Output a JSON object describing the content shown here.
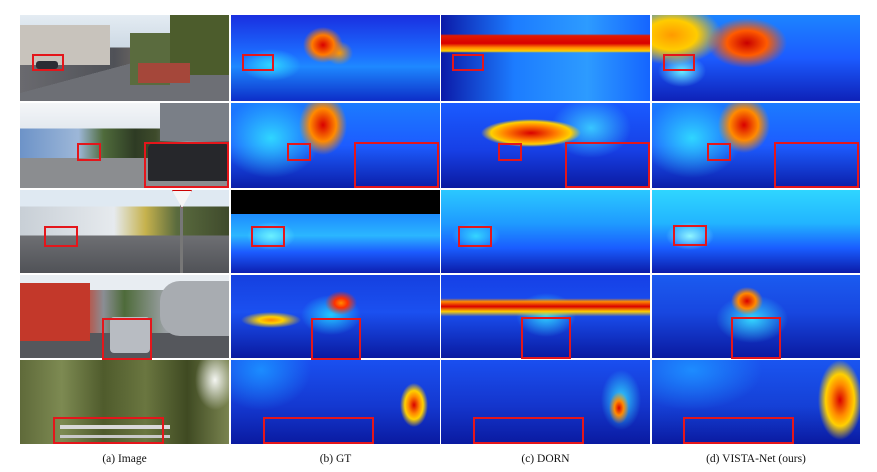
{
  "figure": {
    "captions": [
      "(a) Image",
      "(b) GT",
      "(c) DORN",
      "(d) VISTA-Net (ours)"
    ]
  },
  "colors": {
    "highlight_box": "#e4161b",
    "depth_far": "#0a1aa8",
    "depth_mid": "#1e88ff",
    "depth_near_cyan": "#2fd6ff",
    "depth_hot": "#ff7b00",
    "depth_very_near": "#d90000",
    "sky_rgb": "#dfe9f2",
    "road_rgb": "#5b5e66",
    "foliage_rgb": "#6c7640"
  },
  "layout_grid": {
    "columns": 4,
    "rows": 5
  },
  "rows": [
    {
      "scene": "street-with-parked-car"
    },
    {
      "scene": "car-under-trees"
    },
    {
      "scene": "intersection-with-building"
    },
    {
      "scene": "truck-and-car"
    },
    {
      "scene": "railing-in-vegetation"
    }
  ]
}
